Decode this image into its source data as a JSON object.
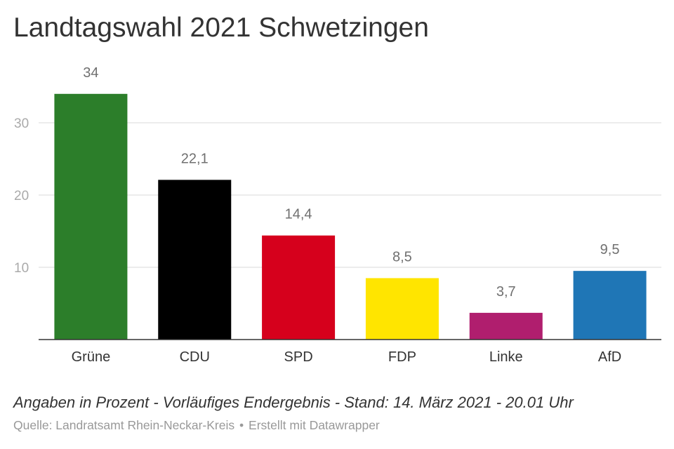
{
  "title": "Landtagswahl 2021 Schwetzingen",
  "note": "Angaben in Prozent - Vorläufiges Endergebnis - Stand: 14. März 2021 - 20.01 Uhr",
  "source": {
    "label": "Quelle: Landratsamt Rhein-Neckar-Kreis",
    "separator": "•",
    "credit": "Erstellt mit Datawrapper"
  },
  "colors": {
    "gruene": "#2c7e2a",
    "cdu": "#000000",
    "spd": "#d6001c",
    "fdp": "#ffe500",
    "linke": "#b01e6e",
    "afd": "#1f76b6"
  },
  "chart_data": {
    "type": "bar",
    "categories": [
      "Grüne",
      "CDU",
      "SPD",
      "FDP",
      "Linke",
      "AfD"
    ],
    "values": [
      34,
      22.1,
      14.4,
      8.5,
      3.7,
      9.5
    ],
    "value_labels": [
      "34",
      "22,1",
      "14,4",
      "8,5",
      "3,7",
      "9,5"
    ],
    "bar_colors": [
      "#2c7e2a",
      "#000000",
      "#d6001c",
      "#ffe500",
      "#b01e6e",
      "#1f76b6"
    ],
    "y_ticks": [
      10,
      20,
      30
    ],
    "y_tick_labels": [
      "10",
      "20",
      "30"
    ],
    "ylim": [
      0,
      34
    ],
    "grid": true,
    "title": "Landtagswahl 2021 Schwetzingen",
    "xlabel": "",
    "ylabel": ""
  }
}
